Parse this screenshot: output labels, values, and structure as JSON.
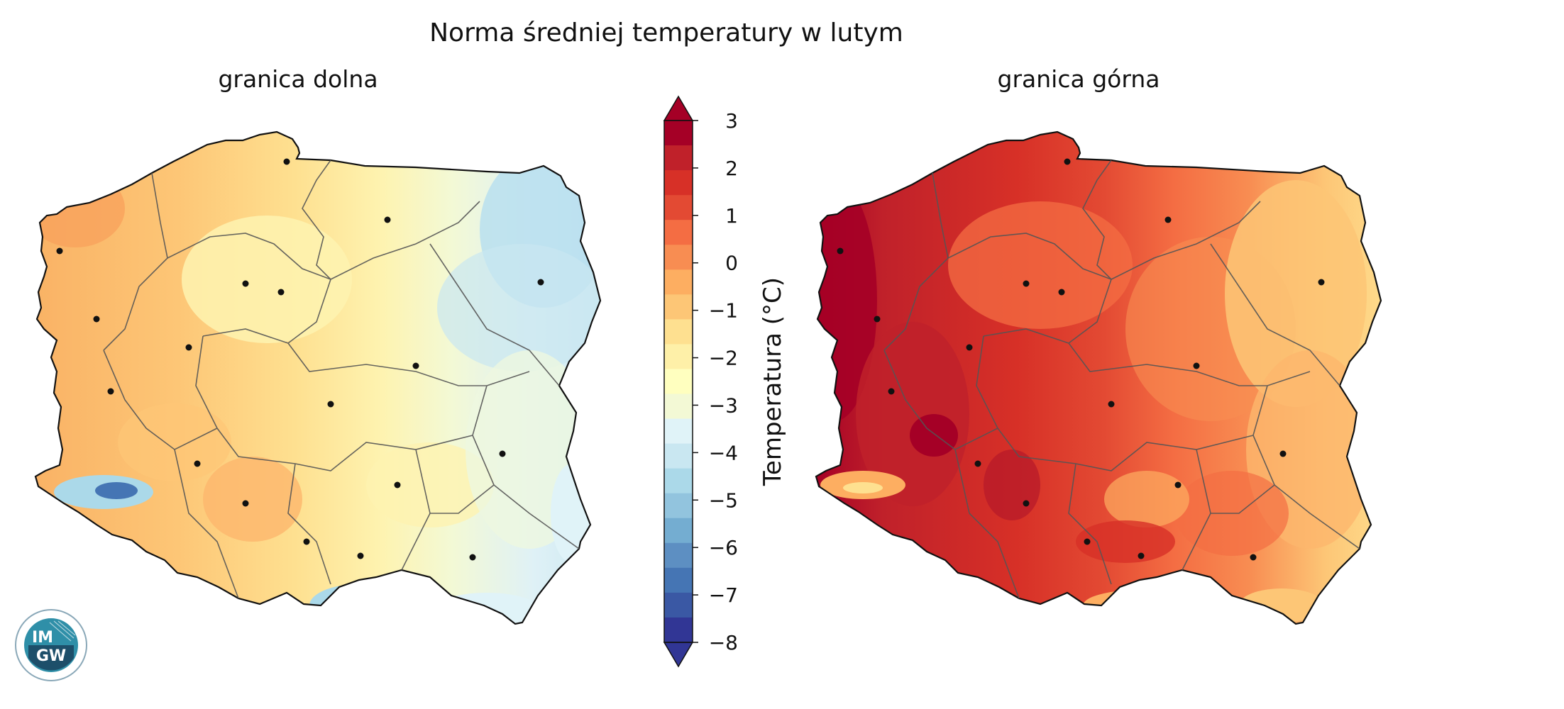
{
  "title": "Norma średniej temperatury w lutym",
  "panels": {
    "left": {
      "subtitle": "granica dolna"
    },
    "right": {
      "subtitle": "granica górna"
    }
  },
  "colorbar": {
    "label": "Temperatura (°C)",
    "ticks": [
      "3",
      "2",
      "1",
      "0",
      "−1",
      "−2",
      "−3",
      "−4",
      "−5",
      "−6",
      "−7",
      "−8"
    ],
    "range": [
      -8,
      3
    ],
    "colors": [
      "#a50026",
      "#c0212a",
      "#d73027",
      "#e34a33",
      "#f46d43",
      "#f88d52",
      "#fdae61",
      "#fdc676",
      "#fee090",
      "#fef0a8",
      "#ffffbf",
      "#f3f9d5",
      "#e0f3f8",
      "#c9e7f1",
      "#abd9e9",
      "#92c4de",
      "#74add1",
      "#5d8fc2",
      "#4575b4",
      "#3a58a4",
      "#313695"
    ]
  },
  "logo": {
    "text": "IMGW",
    "label_left": "IM",
    "label_right": "GW"
  },
  "colors": {
    "lower_bound_map": [
      "#fdae61",
      "#fdc676",
      "#fee090",
      "#fef0a8",
      "#f3f9d5",
      "#e0f3f8",
      "#c9e7f1",
      "#abd9e9"
    ],
    "upper_bound_map": [
      "#a50026",
      "#c0212a",
      "#d73027",
      "#e34a33",
      "#f46d43",
      "#f88d52",
      "#fdae61",
      "#fdc676",
      "#fee090"
    ]
  }
}
